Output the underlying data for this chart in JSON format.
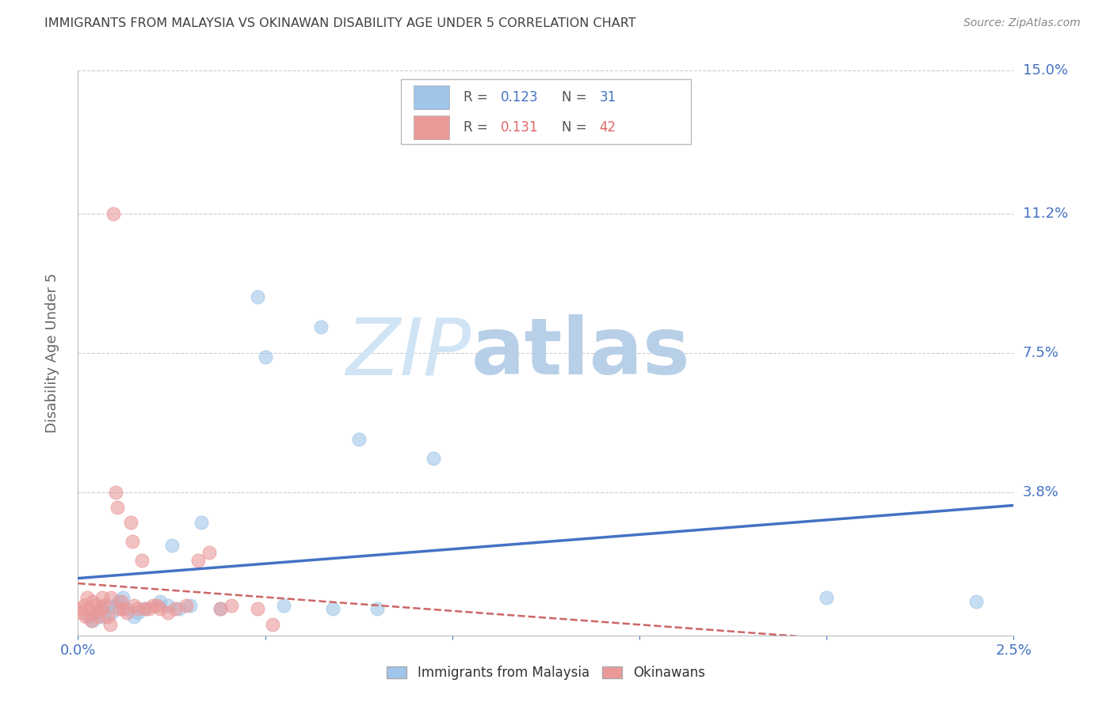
{
  "title": "IMMIGRANTS FROM MALAYSIA VS OKINAWAN DISABILITY AGE UNDER 5 CORRELATION CHART",
  "source": "Source: ZipAtlas.com",
  "ylabel": "Disability Age Under 5",
  "xmin": 0.0,
  "xmax": 0.025,
  "ymin": 0.0,
  "ymax": 0.15,
  "yticks": [
    0.038,
    0.075,
    0.112,
    0.15
  ],
  "ytick_labels": [
    "3.8%",
    "7.5%",
    "11.2%",
    "15.0%"
  ],
  "xticks": [
    0.0,
    0.005,
    0.01,
    0.015,
    0.02,
    0.025
  ],
  "xtick_labels": [
    "0.0%",
    "",
    "",
    "",
    "",
    "2.5%"
  ],
  "watermark_zip": "ZIP",
  "watermark_atlas": "atlas",
  "watermark_color": "#c8d8ef",
  "blue_color": "#9fc5e8",
  "pink_color": "#ea9999",
  "blue_line_color": "#4472c4",
  "pink_line_color": "#cc6666",
  "axis_label_color": "#4472c4",
  "title_color": "#404040",
  "grid_color": "#cccccc",
  "legend_R_color": "#4472c4",
  "legend_N_color": "#4472c4",
  "legend_R2_color": "#e06666",
  "legend_N2_color": "#e06666",
  "blue_scatter": [
    [
      0.0003,
      0.005
    ],
    [
      0.0004,
      0.004
    ],
    [
      0.0005,
      0.006
    ],
    [
      0.0006,
      0.007
    ],
    [
      0.0007,
      0.005
    ],
    [
      0.0008,
      0.008
    ],
    [
      0.0009,
      0.006
    ],
    [
      0.001,
      0.008
    ],
    [
      0.0011,
      0.009
    ],
    [
      0.0012,
      0.01
    ],
    [
      0.0013,
      0.007
    ],
    [
      0.0015,
      0.005
    ],
    [
      0.0016,
      0.006
    ],
    [
      0.0018,
      0.007
    ],
    [
      0.0022,
      0.009
    ],
    [
      0.0024,
      0.008
    ],
    [
      0.0025,
      0.024
    ],
    [
      0.0027,
      0.007
    ],
    [
      0.003,
      0.008
    ],
    [
      0.0033,
      0.03
    ],
    [
      0.0038,
      0.007
    ],
    [
      0.0048,
      0.09
    ],
    [
      0.005,
      0.074
    ],
    [
      0.0055,
      0.008
    ],
    [
      0.0065,
      0.082
    ],
    [
      0.0068,
      0.007
    ],
    [
      0.0075,
      0.052
    ],
    [
      0.008,
      0.007
    ],
    [
      0.0095,
      0.047
    ],
    [
      0.02,
      0.01
    ],
    [
      0.024,
      0.009
    ]
  ],
  "pink_scatter": [
    [
      5e-05,
      0.007
    ],
    [
      0.0001,
      0.006
    ],
    [
      0.00015,
      0.008
    ],
    [
      0.0002,
      0.005
    ],
    [
      0.00025,
      0.01
    ],
    [
      0.0003,
      0.007
    ],
    [
      0.00035,
      0.004
    ],
    [
      0.0004,
      0.009
    ],
    [
      0.00045,
      0.006
    ],
    [
      0.0005,
      0.008
    ],
    [
      0.00055,
      0.005
    ],
    [
      0.0006,
      0.007
    ],
    [
      0.00065,
      0.01
    ],
    [
      0.0007,
      0.008
    ],
    [
      0.0008,
      0.005
    ],
    [
      0.00085,
      0.003
    ],
    [
      0.00088,
      0.01
    ],
    [
      0.00095,
      0.112
    ],
    [
      0.001,
      0.038
    ],
    [
      0.00105,
      0.034
    ],
    [
      0.0011,
      0.007
    ],
    [
      0.00115,
      0.009
    ],
    [
      0.0012,
      0.007
    ],
    [
      0.0013,
      0.006
    ],
    [
      0.0014,
      0.03
    ],
    [
      0.00145,
      0.025
    ],
    [
      0.0015,
      0.008
    ],
    [
      0.0016,
      0.007
    ],
    [
      0.0017,
      0.02
    ],
    [
      0.0018,
      0.007
    ],
    [
      0.0019,
      0.007
    ],
    [
      0.002,
      0.008
    ],
    [
      0.0021,
      0.008
    ],
    [
      0.0022,
      0.007
    ],
    [
      0.0024,
      0.006
    ],
    [
      0.0026,
      0.007
    ],
    [
      0.0029,
      0.008
    ],
    [
      0.0032,
      0.02
    ],
    [
      0.0035,
      0.022
    ],
    [
      0.0038,
      0.007
    ],
    [
      0.0041,
      0.008
    ],
    [
      0.0048,
      0.007
    ],
    [
      0.0052,
      0.003
    ]
  ]
}
